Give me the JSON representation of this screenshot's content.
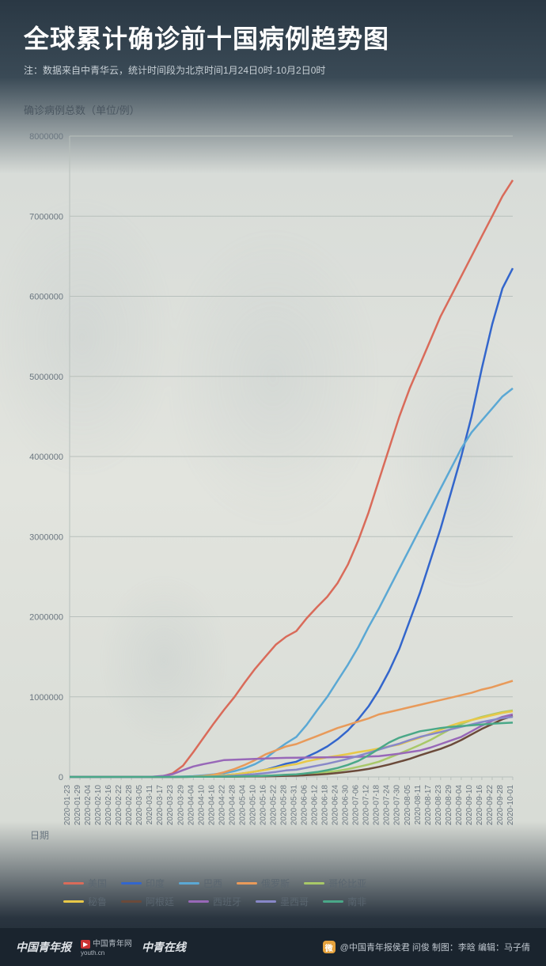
{
  "header": {
    "title": "全球累计确诊前十国病例趋势图",
    "subtitle": "注：数据来自中青华云，统计时间段为北京时间1月24日0时-10月2日0时"
  },
  "chart": {
    "type": "line",
    "ylabel": "确诊病例总数（单位/例）",
    "xlabel": "日期",
    "ylim": [
      0,
      8000000
    ],
    "yticks": [
      0,
      1000000,
      2000000,
      3000000,
      4000000,
      5000000,
      6000000,
      7000000,
      8000000
    ],
    "background_color": "transparent",
    "grid_color": "#b8c0bc",
    "axis_text_color": "#6a7680",
    "line_width": 2.5,
    "x_dates": [
      "2020-01-23",
      "2020-01-29",
      "2020-02-04",
      "2020-02-10",
      "2020-02-16",
      "2020-02-22",
      "2020-02-28",
      "2020-03-05",
      "2020-03-11",
      "2020-03-17",
      "2020-03-23",
      "2020-03-29",
      "2020-04-04",
      "2020-04-10",
      "2020-04-16",
      "2020-04-22",
      "2020-04-28",
      "2020-05-04",
      "2020-05-10",
      "2020-05-16",
      "2020-05-22",
      "2020-05-28",
      "2020-05-31",
      "2020-06-06",
      "2020-06-12",
      "2020-06-18",
      "2020-06-24",
      "2020-06-30",
      "2020-07-06",
      "2020-07-12",
      "2020-07-18",
      "2020-07-24",
      "2020-07-30",
      "2020-08-05",
      "2020-08-11",
      "2020-08-17",
      "2020-08-23",
      "2020-08-29",
      "2020-09-04",
      "2020-09-10",
      "2020-09-16",
      "2020-09-22",
      "2020-09-28",
      "2020-10-01"
    ],
    "series": [
      {
        "name": "美国",
        "color": "#d96b5a",
        "values": [
          0,
          0,
          0,
          0,
          0,
          0,
          0,
          200,
          1200,
          6500,
          45000,
          140000,
          310000,
          490000,
          670000,
          840000,
          1000000,
          1180000,
          1350000,
          1500000,
          1650000,
          1750000,
          1820000,
          1980000,
          2120000,
          2250000,
          2420000,
          2650000,
          2950000,
          3300000,
          3700000,
          4100000,
          4500000,
          4850000,
          5150000,
          5450000,
          5750000,
          6000000,
          6250000,
          6500000,
          6750000,
          7000000,
          7250000,
          7450000
        ]
      },
      {
        "name": "印度",
        "color": "#3366cc",
        "values": [
          0,
          0,
          0,
          0,
          0,
          0,
          0,
          0,
          60,
          140,
          500,
          1000,
          3000,
          7000,
          13000,
          21000,
          31000,
          46000,
          67000,
          90000,
          125000,
          165000,
          190000,
          250000,
          310000,
          380000,
          470000,
          580000,
          720000,
          880000,
          1080000,
          1320000,
          1600000,
          1950000,
          2300000,
          2700000,
          3100000,
          3550000,
          4000000,
          4500000,
          5100000,
          5650000,
          6100000,
          6350000
        ]
      },
      {
        "name": "巴西",
        "color": "#5ba8d4",
        "values": [
          0,
          0,
          0,
          0,
          0,
          0,
          0,
          0,
          50,
          300,
          2000,
          4500,
          10000,
          20000,
          32000,
          46000,
          72000,
          110000,
          160000,
          230000,
          330000,
          420000,
          500000,
          650000,
          830000,
          1000000,
          1200000,
          1400000,
          1620000,
          1870000,
          2100000,
          2350000,
          2600000,
          2850000,
          3100000,
          3350000,
          3600000,
          3850000,
          4100000,
          4300000,
          4450000,
          4600000,
          4750000,
          4850000
        ]
      },
      {
        "name": "俄罗斯",
        "color": "#e89a5a",
        "values": [
          0,
          0,
          0,
          0,
          0,
          0,
          0,
          0,
          20,
          110,
          450,
          1800,
          4700,
          12000,
          28000,
          58000,
          100000,
          150000,
          210000,
          280000,
          330000,
          380000,
          410000,
          460000,
          510000,
          560000,
          610000,
          650000,
          690000,
          730000,
          780000,
          810000,
          840000,
          870000,
          900000,
          930000,
          960000,
          990000,
          1020000,
          1050000,
          1090000,
          1120000,
          1160000,
          1200000
        ]
      },
      {
        "name": "哥伦比亚",
        "color": "#a8c868",
        "values": [
          0,
          0,
          0,
          0,
          0,
          0,
          0,
          0,
          0,
          60,
          300,
          700,
          1500,
          2700,
          3400,
          4300,
          5900,
          8000,
          11000,
          15000,
          19000,
          25000,
          28000,
          38000,
          48000,
          60000,
          75000,
          98000,
          125000,
          155000,
          190000,
          240000,
          290000,
          345000,
          400000,
          460000,
          530000,
          600000,
          660000,
          710000,
          750000,
          780000,
          810000,
          830000
        ]
      },
      {
        "name": "秘鲁",
        "color": "#e8c848",
        "values": [
          0,
          0,
          0,
          0,
          0,
          0,
          0,
          0,
          0,
          85,
          400,
          950,
          2000,
          6000,
          12000,
          20000,
          32000,
          48000,
          68000,
          88000,
          112000,
          140000,
          160000,
          195000,
          220000,
          245000,
          265000,
          285000,
          310000,
          330000,
          355000,
          380000,
          405000,
          450000,
          490000,
          540000,
          590000,
          640000,
          680000,
          710000,
          740000,
          770000,
          800000,
          820000
        ]
      },
      {
        "name": "阿根廷",
        "color": "#6b4a3a",
        "values": [
          0,
          0,
          0,
          0,
          0,
          0,
          0,
          0,
          20,
          80,
          300,
          800,
          1500,
          2000,
          2700,
          3300,
          4100,
          5000,
          6000,
          7800,
          10000,
          14000,
          16000,
          22000,
          29000,
          37000,
          49000,
          64000,
          80000,
          100000,
          125000,
          155000,
          190000,
          225000,
          270000,
          310000,
          350000,
          400000,
          460000,
          530000,
          600000,
          660000,
          720000,
          760000
        ]
      },
      {
        "name": "西班牙",
        "color": "#9868b8",
        "values": [
          0,
          0,
          0,
          0,
          0,
          0,
          30,
          260,
          2200,
          12000,
          35000,
          85000,
          130000,
          160000,
          185000,
          210000,
          215000,
          220000,
          225000,
          230000,
          235000,
          238000,
          240000,
          242000,
          243000,
          245000,
          247000,
          249000,
          252000,
          255000,
          260000,
          275000,
          290000,
          310000,
          330000,
          365000,
          410000,
          455000,
          500000,
          570000,
          640000,
          700000,
          750000,
          780000
        ]
      },
      {
        "name": "墨西哥",
        "color": "#8888c8",
        "values": [
          0,
          0,
          0,
          0,
          0,
          0,
          0,
          0,
          10,
          90,
          370,
          1000,
          1900,
          3800,
          6300,
          10000,
          16000,
          25000,
          35000,
          47000,
          62000,
          81000,
          90000,
          115000,
          140000,
          165000,
          195000,
          225000,
          262000,
          300000,
          340000,
          380000,
          415000,
          460000,
          500000,
          530000,
          560000,
          595000,
          625000,
          655000,
          685000,
          710000,
          735000,
          750000
        ]
      },
      {
        "name": "南非",
        "color": "#4aa888",
        "values": [
          0,
          0,
          0,
          0,
          0,
          0,
          0,
          0,
          15,
          85,
          400,
          1300,
          1700,
          2000,
          2700,
          3600,
          4900,
          7200,
          10000,
          14000,
          20000,
          27000,
          32000,
          45000,
          61000,
          84000,
          112000,
          150000,
          200000,
          270000,
          350000,
          430000,
          490000,
          530000,
          570000,
          590000,
          610000,
          625000,
          635000,
          645000,
          655000,
          665000,
          672000,
          678000
        ]
      }
    ]
  },
  "legend": {
    "rows": [
      [
        "美国",
        "印度",
        "巴西",
        "俄罗斯",
        "哥伦比亚"
      ],
      [
        "秘鲁",
        "阿根廷",
        "西班牙",
        "墨西哥",
        "南非"
      ]
    ]
  },
  "footer": {
    "brand1": "中国青年报",
    "brand2": "youth.cn",
    "brand2_cn": "中国青年网",
    "brand3": "中青在线",
    "credit": "@中国青年报侯君 问俊 制图：李晗 编辑：马子倩"
  }
}
